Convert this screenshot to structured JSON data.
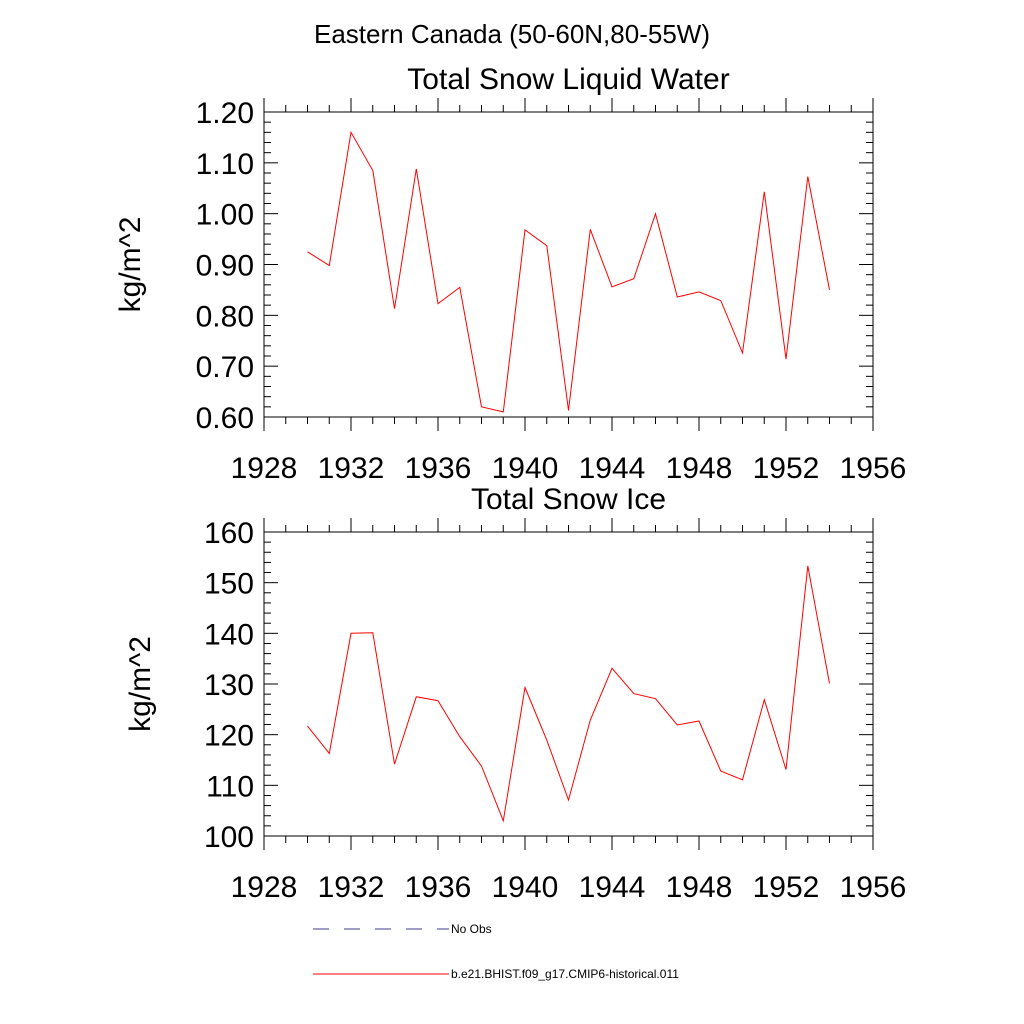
{
  "suptitle": "Eastern Canada (50-60N,80-55W)",
  "chart_data": [
    {
      "type": "line",
      "title": "Total Snow Liquid Water",
      "xlabel": "",
      "ylabel": "kg/m^2",
      "xlim": [
        1928,
        1956
      ],
      "ylim": [
        0.6,
        1.2
      ],
      "xticks": [
        1928,
        1932,
        1936,
        1940,
        1944,
        1948,
        1952,
        1956
      ],
      "xtick_labels": [
        "1928",
        "1932",
        "1936",
        "1940",
        "1944",
        "1948",
        "1952",
        "1956"
      ],
      "yticks": [
        0.6,
        0.7,
        0.8,
        0.9,
        1.0,
        1.1,
        1.2
      ],
      "ytick_labels": [
        "0.60",
        "0.70",
        "0.80",
        "0.90",
        "1.00",
        "1.10",
        "1.20"
      ],
      "grid": false,
      "series": [
        {
          "name": "b.e21.BHIST.f09_g17.CMIP6-historical.011",
          "color": "#ff0000",
          "x": [
            1930,
            1931,
            1932,
            1933,
            1934,
            1935,
            1936,
            1937,
            1938,
            1939,
            1940,
            1941,
            1942,
            1943,
            1944,
            1945,
            1946,
            1947,
            1948,
            1949,
            1950,
            1951,
            1952,
            1953,
            1954
          ],
          "y": [
            0.925,
            0.898,
            1.16,
            1.085,
            0.813,
            1.088,
            0.823,
            0.855,
            0.62,
            0.61,
            0.968,
            0.937,
            0.613,
            0.969,
            0.856,
            0.872,
            1.0,
            0.836,
            0.846,
            0.829,
            0.726,
            1.043,
            0.714,
            1.073,
            0.85
          ]
        }
      ]
    },
    {
      "type": "line",
      "title": "Total Snow Ice",
      "xlabel": "",
      "ylabel": "kg/m^2",
      "xlim": [
        1928,
        1956
      ],
      "ylim": [
        100,
        160
      ],
      "xticks": [
        1928,
        1932,
        1936,
        1940,
        1944,
        1948,
        1952,
        1956
      ],
      "xtick_labels": [
        "1928",
        "1932",
        "1936",
        "1940",
        "1944",
        "1948",
        "1952",
        "1956"
      ],
      "yticks": [
        100,
        110,
        120,
        130,
        140,
        150,
        160
      ],
      "ytick_labels": [
        "100",
        "110",
        "120",
        "130",
        "140",
        "150",
        "160"
      ],
      "grid": false,
      "series": [
        {
          "name": "b.e21.BHIST.f09_g17.CMIP6-historical.011",
          "color": "#ff0000",
          "x": [
            1930,
            1931,
            1932,
            1933,
            1934,
            1935,
            1936,
            1937,
            1938,
            1939,
            1940,
            1941,
            1942,
            1943,
            1944,
            1945,
            1946,
            1947,
            1948,
            1949,
            1950,
            1951,
            1952,
            1953,
            1954
          ],
          "y": [
            121.7,
            116.3,
            140.0,
            140.1,
            114.2,
            127.5,
            126.7,
            119.6,
            113.8,
            103.0,
            129.3,
            118.9,
            107.1,
            122.9,
            133.1,
            128.1,
            127.1,
            121.9,
            122.7,
            112.8,
            111.1,
            126.9,
            113.1,
            153.3,
            130.1
          ]
        }
      ]
    }
  ],
  "legend": {
    "placement": "bottom",
    "entries": [
      {
        "label": "No Obs",
        "color": "#3b3b8c",
        "style": "dashed"
      },
      {
        "label": "b.e21.BHIST.f09_g17.CMIP6-historical.011",
        "color": "#ff0000",
        "style": "solid"
      }
    ]
  }
}
